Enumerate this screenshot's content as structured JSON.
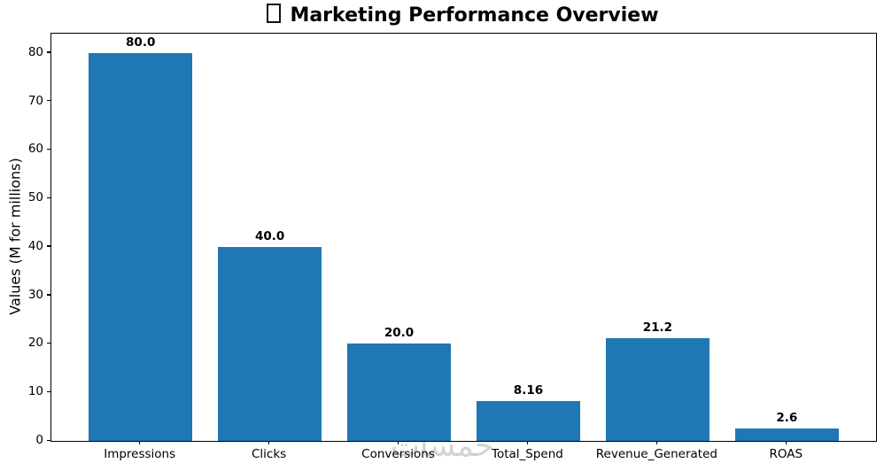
{
  "figure": {
    "title_text": "Marketing Performance Overview",
    "title_prefix_icon": "missing-emoji-tofu-box"
  },
  "chart_data": {
    "type": "bar",
    "title": "Marketing Performance Overview",
    "categories": [
      "Impressions",
      "Clicks",
      "Conversions",
      "Total_Spend",
      "Revenue_Generated",
      "ROAS"
    ],
    "values": [
      80.0,
      40.0,
      20.0,
      8.16,
      21.2,
      2.6
    ],
    "bar_labels": [
      "80.0",
      "40.0",
      "20.0",
      "8.16",
      "21.2",
      "2.6"
    ],
    "xlabel": "",
    "ylabel": "Values (M for millions)",
    "yticks": [
      0,
      10,
      20,
      30,
      40,
      50,
      60,
      70,
      80
    ],
    "ylim": [
      0,
      84
    ],
    "bar_color": "#1f77b4",
    "grid": false,
    "legend": null,
    "bar_width_fraction": 0.8,
    "x_margin_fraction": 0.05
  },
  "watermark": {
    "text": "خمسات",
    "color_hint": "#d2d2d2"
  }
}
